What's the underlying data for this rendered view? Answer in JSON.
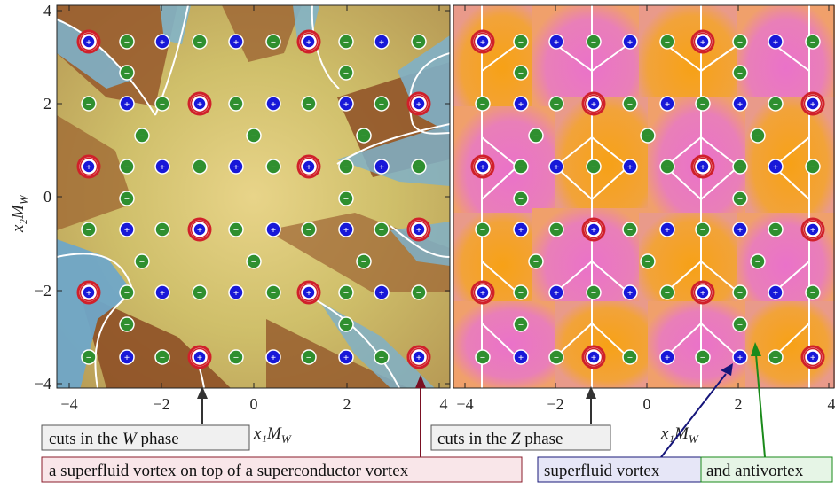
{
  "left_panel": {
    "x_ticks": [
      "−4",
      "−2",
      "0",
      "2",
      "4"
    ],
    "y_ticks": [
      "4",
      "2",
      "0",
      "−2",
      "−4"
    ],
    "xlabel": "x₁M",
    "xlabel_sub": "W",
    "ylabel": "x₂M",
    "ylabel_sub": "W"
  },
  "right_panel": {
    "x_ticks": [
      "−4",
      "−2",
      "0",
      "2",
      "4"
    ],
    "xlabel": "x₁M",
    "xlabel_sub": "W"
  },
  "markers": {
    "plus": "+",
    "minus": "−"
  },
  "annotations": {
    "cuts_w_pre": "cuts in the ",
    "cuts_w_var": "W",
    "cuts_w_post": " phase",
    "cuts_z_pre": "cuts in the ",
    "cuts_z_var": "Z",
    "cuts_z_post": " phase",
    "superfluid_on_superconductor": "a superfluid vortex on top of a superconductor vortex",
    "superfluid_vortex": "superfluid vortex",
    "antivortex": "and antivortex"
  },
  "colors": {
    "vortex_blue": "#1818d8",
    "antivortex_green": "#2f8f2f",
    "ring_red": "#d0202a",
    "arrow_dark": "#333333",
    "arrow_maroon": "#7a0f22",
    "arrow_navy": "#15157a",
    "arrow_green": "#1a8a1a",
    "magenta": "#e56cc4",
    "orange": "#f4a21a",
    "tan": "#d9c271",
    "brown": "#8b4a24",
    "blue_cut": "#6fa7c8"
  }
}
